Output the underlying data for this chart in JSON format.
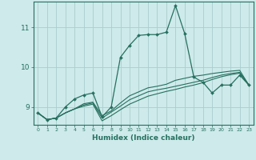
{
  "xlabel": "Humidex (Indice chaleur)",
  "xlim": [
    -0.5,
    23.5
  ],
  "ylim": [
    8.55,
    11.65
  ],
  "yticks": [
    9,
    10,
    11
  ],
  "xticks": [
    0,
    1,
    2,
    3,
    4,
    5,
    6,
    7,
    8,
    9,
    10,
    11,
    12,
    13,
    14,
    15,
    16,
    17,
    18,
    19,
    20,
    21,
    22,
    23
  ],
  "bg_color": "#ceeaea",
  "grid_color": "#aacece",
  "line_color": "#267060",
  "lines": [
    [
      8.85,
      8.68,
      8.72,
      9.0,
      9.2,
      9.3,
      9.35,
      8.75,
      9.0,
      10.25,
      10.55,
      10.8,
      10.82,
      10.82,
      10.88,
      11.55,
      10.85,
      9.75,
      9.62,
      9.35,
      9.55,
      9.55,
      9.8,
      9.55
    ],
    [
      8.85,
      8.68,
      8.72,
      8.85,
      8.95,
      9.08,
      9.12,
      8.78,
      8.9,
      9.1,
      9.28,
      9.38,
      9.48,
      9.52,
      9.57,
      9.67,
      9.72,
      9.77,
      9.8,
      9.84,
      9.87,
      9.9,
      9.92,
      9.55
    ],
    [
      8.85,
      8.68,
      8.72,
      8.85,
      8.95,
      9.05,
      9.1,
      8.72,
      8.87,
      9.02,
      9.18,
      9.28,
      9.38,
      9.43,
      9.47,
      9.52,
      9.57,
      9.62,
      9.67,
      9.74,
      9.8,
      9.84,
      9.87,
      9.55
    ],
    [
      8.85,
      8.68,
      8.72,
      8.85,
      8.95,
      9.02,
      9.07,
      8.65,
      8.78,
      8.93,
      9.07,
      9.17,
      9.27,
      9.33,
      9.39,
      9.44,
      9.5,
      9.55,
      9.61,
      9.69,
      9.76,
      9.81,
      9.85,
      9.55
    ]
  ]
}
